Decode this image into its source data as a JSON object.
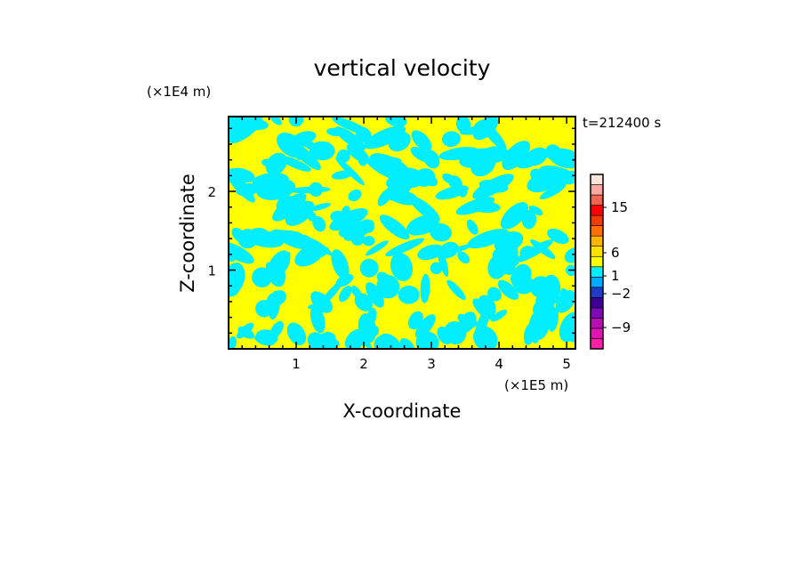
{
  "chart_data": {
    "type": "heatmap",
    "title": "vertical velocity",
    "xlabel": "X-coordinate",
    "ylabel": "Z-coordinate",
    "x_unit": "(×1E5 m)",
    "y_unit": "(×1E4 m)",
    "time_label": "t=212400 s",
    "xlim": [
      0,
      5.13
    ],
    "ylim": [
      0,
      2.95
    ],
    "x_ticks": [
      {
        "value": 1,
        "label": "1"
      },
      {
        "value": 2,
        "label": "2"
      },
      {
        "value": 3,
        "label": "3"
      },
      {
        "value": 4,
        "label": "4"
      },
      {
        "value": 5,
        "label": "5"
      }
    ],
    "y_ticks": [
      {
        "value": 1,
        "label": "1"
      },
      {
        "value": 2,
        "label": "2"
      }
    ],
    "field_colors": {
      "positive": "#ffff00",
      "negative": "#00eeff"
    },
    "colorbar": {
      "levels_from_bottom": [
        {
          "color": "#ff1fa8"
        },
        {
          "color": "#e014b4"
        },
        {
          "color": "#b80fb4"
        },
        {
          "color": "#7d0ab4"
        },
        {
          "color": "#3c0096"
        },
        {
          "color": "#1e3cc8"
        },
        {
          "color": "#00aaff"
        },
        {
          "color": "#00eeff"
        },
        {
          "color": "#ffff00"
        },
        {
          "color": "#ffe100"
        },
        {
          "color": "#ffb400"
        },
        {
          "color": "#ff6e00"
        },
        {
          "color": "#f03c00"
        },
        {
          "color": "#ff0000"
        },
        {
          "color": "#f06450"
        },
        {
          "color": "#f8a8a0"
        },
        {
          "color": "#fde5dc"
        }
      ],
      "labels": [
        {
          "value": -9,
          "label": "−9"
        },
        {
          "value": -2,
          "label": "−2"
        },
        {
          "value": 1,
          "label": "1"
        },
        {
          "value": 6,
          "label": "6"
        },
        {
          "value": 15,
          "label": "15"
        }
      ]
    }
  }
}
